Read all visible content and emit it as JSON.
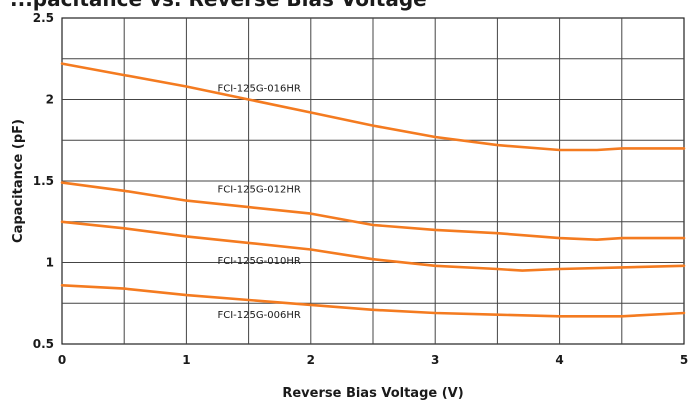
{
  "chart_data": {
    "type": "line",
    "title": "...pacitance vs. Reverse Bias Voltage",
    "xlabel": "Reverse Bias Voltage (V)",
    "ylabel": "Capacitance (pF)",
    "xlim": [
      0,
      5
    ],
    "ylim": [
      0.5,
      2.5
    ],
    "x_ticks": [
      "0",
      "1",
      "2",
      "3",
      "4",
      "5"
    ],
    "y_ticks": [
      "0.5",
      "1",
      "1.5",
      "2",
      "2.5"
    ],
    "grid": true,
    "x_minor_step": 0.5,
    "y_minor_step": 0.25,
    "line_color": "#f47b20",
    "series": [
      {
        "name": "FCI-125G-016HR",
        "x": [
          0,
          0.5,
          1,
          1.5,
          2,
          2.5,
          3,
          3.5,
          4,
          4.3,
          4.5,
          5
        ],
        "y": [
          2.22,
          2.15,
          2.08,
          2.0,
          1.92,
          1.84,
          1.77,
          1.72,
          1.69,
          1.69,
          1.7,
          1.7
        ],
        "label_at": [
          1.25,
          2.05
        ]
      },
      {
        "name": "FCI-125G-012HR",
        "x": [
          0,
          0.5,
          1,
          1.5,
          2,
          2.5,
          3,
          3.5,
          4,
          4.3,
          4.5,
          5
        ],
        "y": [
          1.49,
          1.44,
          1.38,
          1.34,
          1.3,
          1.23,
          1.2,
          1.18,
          1.15,
          1.14,
          1.15,
          1.15
        ],
        "label_at": [
          1.25,
          1.43
        ]
      },
      {
        "name": "FCI-125G-010HR",
        "x": [
          0,
          0.5,
          1,
          1.5,
          2,
          2.5,
          3,
          3.5,
          3.7,
          4,
          4.5,
          5
        ],
        "y": [
          1.25,
          1.21,
          1.16,
          1.12,
          1.08,
          1.02,
          0.98,
          0.96,
          0.95,
          0.96,
          0.97,
          0.98
        ],
        "label_at": [
          1.25,
          0.99
        ]
      },
      {
        "name": "FCI-125G-006HR",
        "x": [
          0,
          0.5,
          1,
          1.5,
          2,
          2.5,
          3,
          3.5,
          4,
          4.5,
          5
        ],
        "y": [
          0.86,
          0.84,
          0.8,
          0.77,
          0.74,
          0.71,
          0.69,
          0.68,
          0.67,
          0.67,
          0.69
        ],
        "label_at": [
          1.25,
          0.66
        ]
      }
    ]
  }
}
